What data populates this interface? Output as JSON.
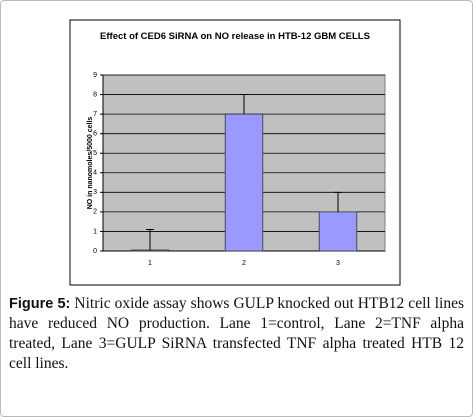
{
  "chart_data": {
    "type": "bar",
    "title": "Effect of CED6 SiRNA on NO release in HTB-12 GBM CELLS",
    "ylabel": "NO in nanomoles/5000 cells",
    "categories": [
      "1",
      "2",
      "3"
    ],
    "values": [
      0.05,
      7,
      2
    ],
    "errors": [
      1.05,
      1,
      1
    ],
    "color": "#9999ff",
    "ylim": [
      0,
      9
    ],
    "yticks": [
      0,
      1,
      2,
      3,
      4,
      5,
      6,
      7,
      8,
      9
    ],
    "grid": true
  },
  "caption": {
    "label": "Figure 5:",
    "text": "Nitric oxide assay shows GULP knocked out HTB12 cell lines have reduced NO production. Lane 1=control, Lane 2=TNF alpha treated, Lane 3=GULP SiRNA transfected TNF alpha treated HTB 12 cell lines."
  }
}
